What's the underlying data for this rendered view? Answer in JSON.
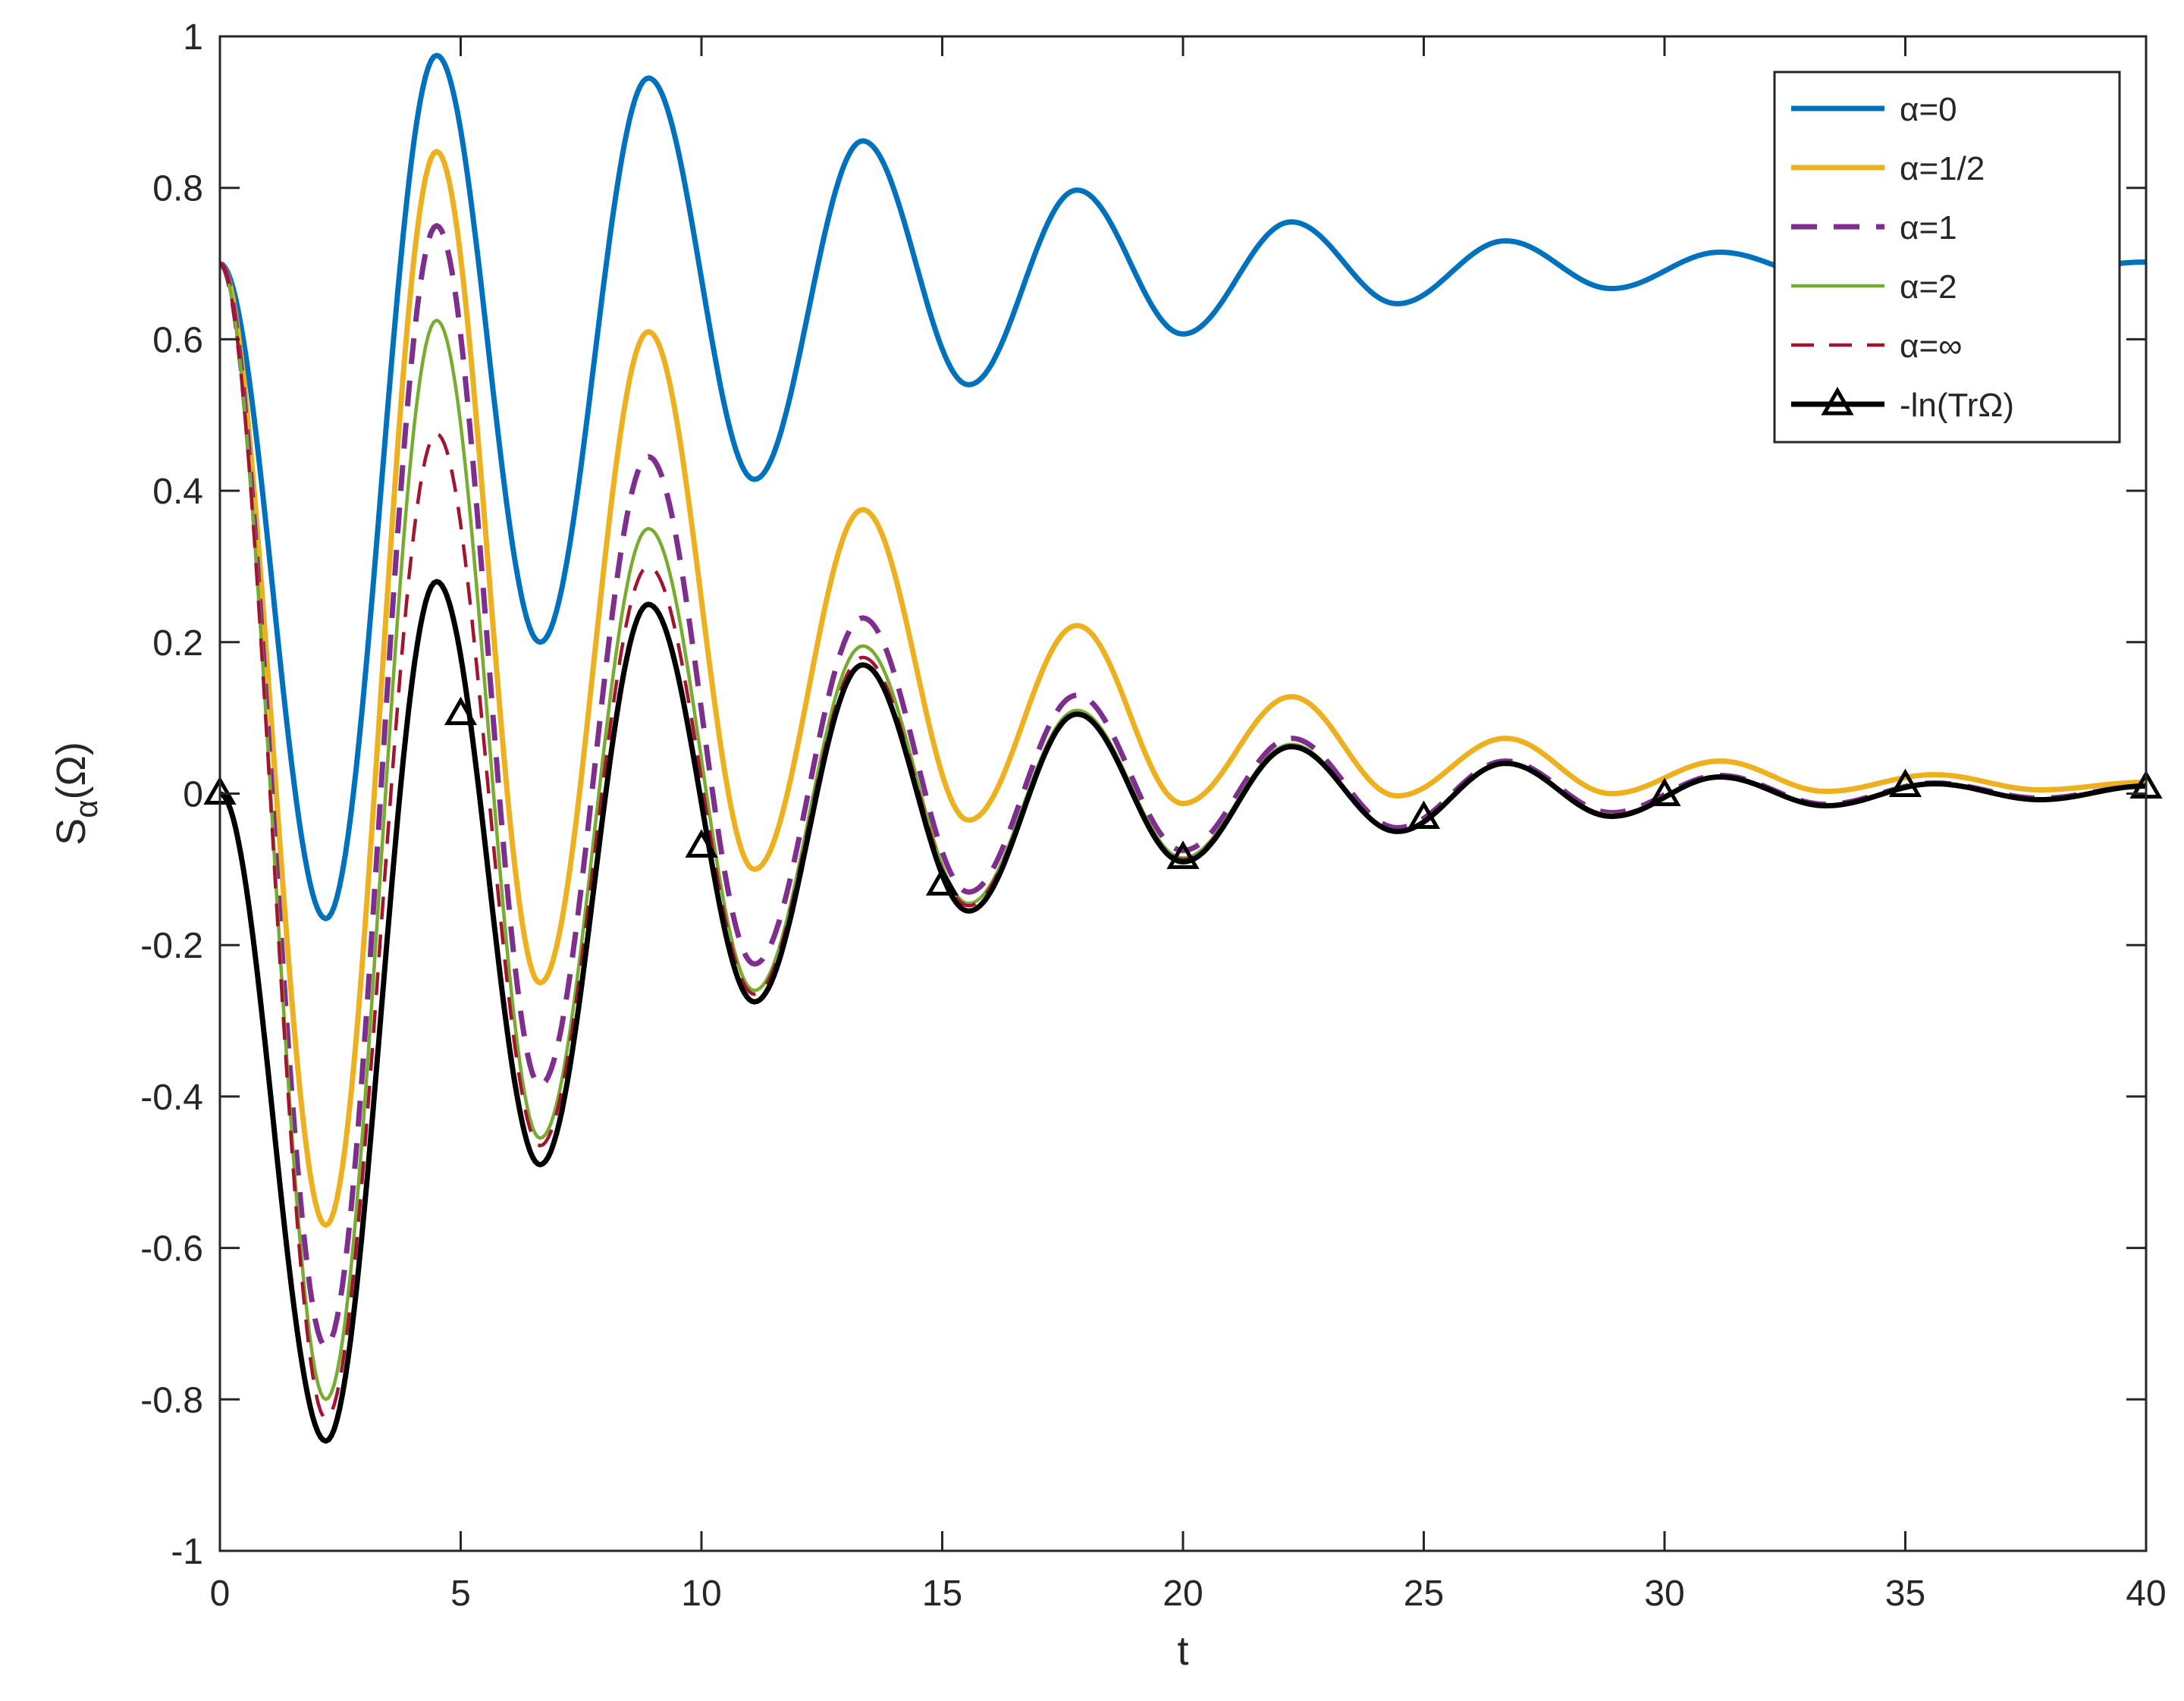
{
  "chart_data": {
    "type": "line",
    "title": "",
    "xlabel": "t",
    "ylabel": {
      "main": "S",
      "sub": "α",
      "suffix": "(Ω)"
    },
    "xlim": [
      0,
      40
    ],
    "ylim": [
      -1,
      1
    ],
    "xticks": [
      "0",
      "5",
      "10",
      "15",
      "20",
      "25",
      "30",
      "35",
      "40"
    ],
    "yticks": [
      "-1",
      "-0.8",
      "-0.6",
      "-0.4",
      "-0.2",
      "0",
      "0.2",
      "0.4",
      "0.6",
      "0.8",
      "1"
    ],
    "grid": false,
    "legend_position": "top-right",
    "series": [
      {
        "name": "α=0",
        "color": "#0072BD",
        "style": "solid",
        "weight": "thick",
        "points": [
          [
            0,
            0.7
          ],
          [
            2.2,
            -0.165
          ],
          [
            4.5,
            0.975
          ],
          [
            6.65,
            0.2
          ],
          [
            8.9,
            0.945
          ],
          [
            11.1,
            0.415
          ],
          [
            13.35,
            0.862
          ],
          [
            15.55,
            0.54
          ],
          [
            17.8,
            0.797
          ],
          [
            20.0,
            0.607
          ],
          [
            22.25,
            0.755
          ],
          [
            24.45,
            0.647
          ],
          [
            26.7,
            0.73
          ],
          [
            28.9,
            0.667
          ],
          [
            31.15,
            0.715
          ],
          [
            33.35,
            0.682
          ],
          [
            35.6,
            0.708
          ],
          [
            37.8,
            0.69
          ],
          [
            40,
            0.702
          ]
        ]
      },
      {
        "name": "α=1/2",
        "color": "#EDB120",
        "style": "solid",
        "weight": "thick",
        "points": [
          [
            0,
            0.7
          ],
          [
            2.2,
            -0.57
          ],
          [
            4.5,
            0.848
          ],
          [
            6.65,
            -0.25
          ],
          [
            8.9,
            0.61
          ],
          [
            11.1,
            -0.1
          ],
          [
            13.35,
            0.375
          ],
          [
            15.55,
            -0.035
          ],
          [
            17.8,
            0.222
          ],
          [
            20.0,
            -0.013
          ],
          [
            22.25,
            0.128
          ],
          [
            24.45,
            -0.003
          ],
          [
            26.7,
            0.073
          ],
          [
            28.9,
            0.0
          ],
          [
            31.15,
            0.043
          ],
          [
            33.35,
            0.003
          ],
          [
            35.6,
            0.025
          ],
          [
            37.8,
            0.005
          ],
          [
            40,
            0.015
          ]
        ]
      },
      {
        "name": "α=1",
        "color": "#7E2F8E",
        "style": "dashed",
        "weight": "thick",
        "points": [
          [
            0,
            0.7
          ],
          [
            2.2,
            -0.73
          ],
          [
            4.5,
            0.75
          ],
          [
            6.65,
            -0.385
          ],
          [
            8.9,
            0.445
          ],
          [
            11.1,
            -0.225
          ],
          [
            13.35,
            0.232
          ],
          [
            15.55,
            -0.13
          ],
          [
            17.8,
            0.13
          ],
          [
            20.0,
            -0.075
          ],
          [
            22.25,
            0.073
          ],
          [
            24.45,
            -0.045
          ],
          [
            26.7,
            0.043
          ],
          [
            28.9,
            -0.025
          ],
          [
            31.15,
            0.024
          ],
          [
            33.35,
            -0.014
          ],
          [
            35.6,
            0.014
          ],
          [
            37.8,
            -0.006
          ],
          [
            40,
            0.01
          ]
        ]
      },
      {
        "name": "α=2",
        "color": "#77AC30",
        "style": "solid",
        "weight": "thin",
        "points": [
          [
            0,
            0.7
          ],
          [
            2.2,
            -0.8
          ],
          [
            4.5,
            0.625
          ],
          [
            6.65,
            -0.455
          ],
          [
            8.9,
            0.35
          ],
          [
            11.1,
            -0.26
          ],
          [
            13.35,
            0.195
          ],
          [
            15.55,
            -0.145
          ],
          [
            17.8,
            0.11
          ],
          [
            20.0,
            -0.085
          ],
          [
            22.25,
            0.065
          ],
          [
            24.45,
            -0.05
          ],
          [
            26.7,
            0.04
          ],
          [
            28.9,
            -0.028
          ],
          [
            31.15,
            0.023
          ],
          [
            33.35,
            -0.015
          ],
          [
            35.6,
            0.013
          ],
          [
            37.8,
            -0.007
          ],
          [
            40,
            0.01
          ]
        ]
      },
      {
        "name": "α=∞",
        "color": "#A2142F",
        "style": "dashed",
        "weight": "thin",
        "points": [
          [
            0,
            0.7
          ],
          [
            2.2,
            -0.825
          ],
          [
            4.5,
            0.475
          ],
          [
            6.65,
            -0.465
          ],
          [
            8.9,
            0.3
          ],
          [
            11.1,
            -0.265
          ],
          [
            13.35,
            0.18
          ],
          [
            15.55,
            -0.148
          ],
          [
            17.8,
            0.105
          ],
          [
            20.0,
            -0.087
          ],
          [
            22.25,
            0.063
          ],
          [
            24.45,
            -0.05
          ],
          [
            26.7,
            0.04
          ],
          [
            28.9,
            -0.028
          ],
          [
            31.15,
            0.023
          ],
          [
            33.35,
            -0.015
          ],
          [
            35.6,
            0.013
          ],
          [
            37.8,
            -0.007
          ],
          [
            40,
            0.01
          ]
        ]
      },
      {
        "name": "-ln(TrΩ)",
        "color": "#000000",
        "style": "solid",
        "weight": "thick",
        "marker": "triangle",
        "points": [
          [
            0,
            0.0
          ],
          [
            2.2,
            -0.855
          ],
          [
            4.5,
            0.28
          ],
          [
            6.65,
            -0.49
          ],
          [
            8.9,
            0.25
          ],
          [
            11.1,
            -0.275
          ],
          [
            13.35,
            0.17
          ],
          [
            15.55,
            -0.155
          ],
          [
            17.8,
            0.105
          ],
          [
            20.0,
            -0.09
          ],
          [
            22.25,
            0.062
          ],
          [
            24.45,
            -0.05
          ],
          [
            26.7,
            0.04
          ],
          [
            28.9,
            -0.03
          ],
          [
            31.15,
            0.022
          ],
          [
            33.35,
            -0.016
          ],
          [
            35.6,
            0.013
          ],
          [
            37.8,
            -0.008
          ],
          [
            40,
            0.01
          ]
        ],
        "marker_points": [
          [
            0,
            0.0
          ],
          [
            5,
            0.105
          ],
          [
            10,
            -0.07
          ],
          [
            15,
            -0.12
          ],
          [
            20,
            -0.085
          ],
          [
            25,
            -0.032
          ],
          [
            30,
            -0.002
          ],
          [
            35,
            0.01
          ],
          [
            40,
            0.008
          ]
        ]
      }
    ]
  }
}
